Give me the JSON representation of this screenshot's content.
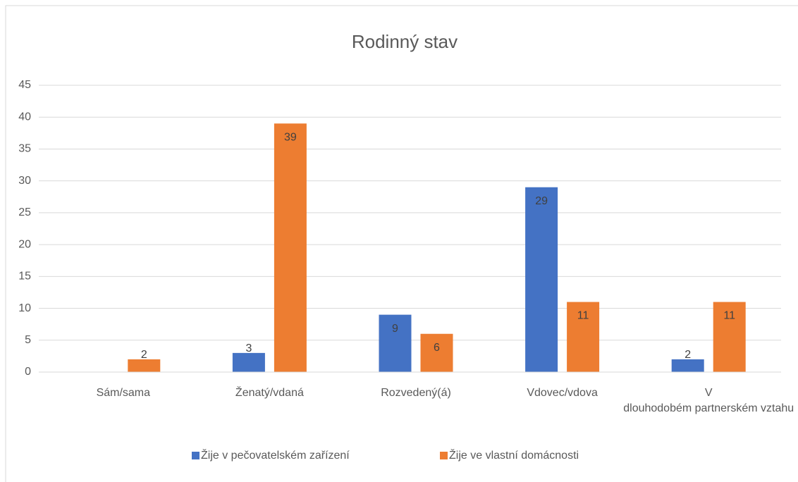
{
  "chart_data": {
    "type": "bar",
    "title": "Rodinný stav",
    "categories": [
      "Sám/sama",
      "Ženatý/vdaná",
      "Rozvedený(á)",
      "Vdovec/vdova",
      "V dlouhodobém partnerském vztahu"
    ],
    "series": [
      {
        "name": "Žije v pečovatelském zařízení",
        "color": "#4472c4",
        "values": [
          null,
          3,
          9,
          29,
          2
        ]
      },
      {
        "name": "Žije ve vlastní domácnosti",
        "color": "#ed7d31",
        "values": [
          2,
          39,
          6,
          11,
          11
        ]
      }
    ],
    "ylim": [
      0,
      45
    ],
    "yticks": [
      0,
      5,
      10,
      15,
      20,
      25,
      30,
      35,
      40,
      45
    ],
    "grid": true,
    "legend": "bottom"
  }
}
